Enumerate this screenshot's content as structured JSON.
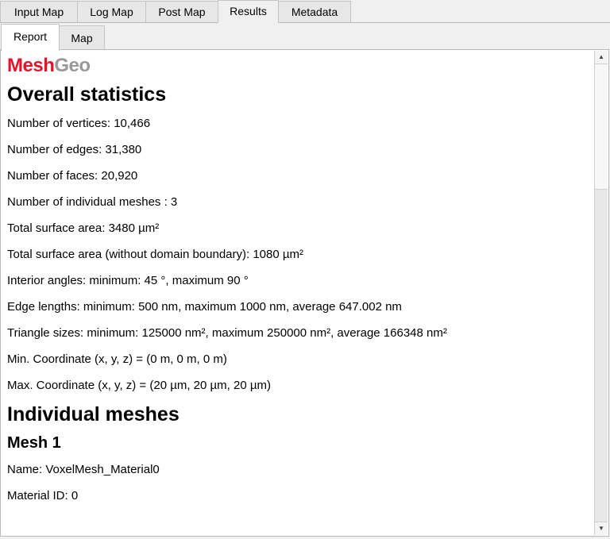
{
  "tabs": [
    "Input Map",
    "Log Map",
    "Post Map",
    "Results",
    "Metadata"
  ],
  "active_tab": "Results",
  "subtabs": [
    "Report",
    "Map"
  ],
  "active_subtab": "Report",
  "logo": {
    "part1": "Mesh",
    "part2": "Geo",
    "color1": "#e3132a",
    "color2": "#999999"
  },
  "report": {
    "overall_heading": "Overall statistics",
    "lines": [
      "Number of vertices: 10,466",
      "Number of edges: 31,380",
      "Number of faces: 20,920",
      "Number of individual meshes : 3",
      "Total surface area: 3480 µm²",
      "Total surface area (without domain boundary): 1080 µm²",
      "Interior angles: minimum: 45 °, maximum 90 °",
      "Edge lengths: minimum: 500 nm, maximum 1000 nm, average 647.002 nm",
      "Triangle sizes: minimum: 125000 nm², maximum 250000 nm², average 166348 nm²",
      "Min. Coordinate (x, y, z) = (0 m, 0 m, 0 m)",
      "Max. Coordinate (x, y, z) = (20 µm, 20 µm, 20 µm)"
    ],
    "individual_heading": "Individual meshes",
    "mesh1": {
      "heading": "Mesh 1",
      "name": "Name: VoxelMesh_Material0",
      "material": "Material ID: 0"
    }
  },
  "scrollbar": {
    "position_fraction": 0.0,
    "visible_fraction": 0.27
  }
}
